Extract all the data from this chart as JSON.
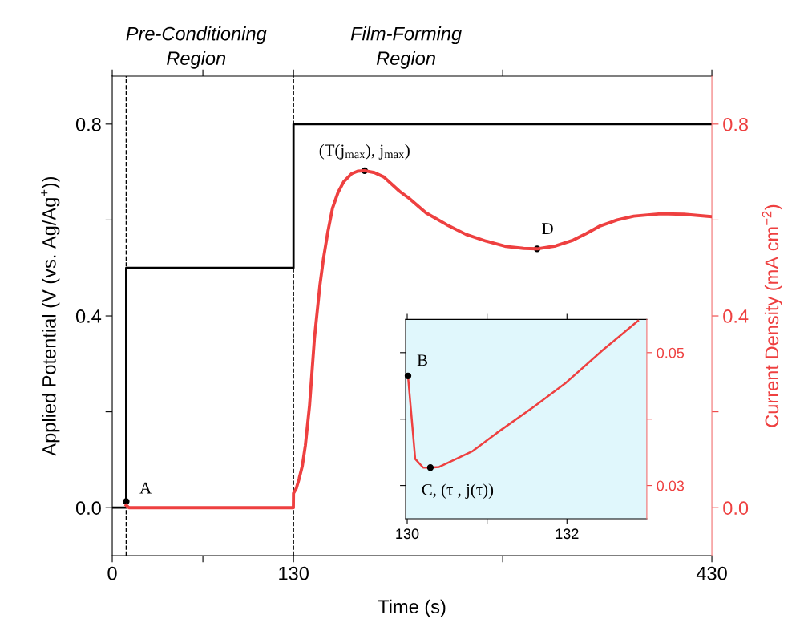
{
  "chart_data": [
    {
      "type": "line",
      "xlabel": "Time (s)",
      "ylabel": "Applied Potential (V (vs. Ag/Ag$^{+}$))",
      "y2label": "Current Density (mA cm$^{−2}$)",
      "xlim": [
        0,
        430
      ],
      "xticks": [
        0,
        {
          "value": 65,
          "label": null
        },
        130,
        {
          "value": 280,
          "label": null
        },
        430
      ],
      "ylim": [
        -0.1,
        0.9
      ],
      "yticks": [
        {
          "value": 0.0,
          "label": "0.0"
        },
        {
          "value": 0.2,
          "label": null
        },
        {
          "value": 0.4,
          "label": "0.4"
        },
        {
          "value": 0.6,
          "label": null
        },
        {
          "value": 0.8,
          "label": "0.8"
        }
      ],
      "y2lim": [
        -0.1,
        0.9
      ],
      "y2ticks": [
        {
          "value": 0.0,
          "label": "0.0"
        },
        {
          "value": 0.2,
          "label": null
        },
        {
          "value": 0.4,
          "label": "0.4"
        },
        {
          "value": 0.6,
          "label": null
        },
        {
          "value": 0.8,
          "label": "0.8"
        }
      ],
      "series": [
        {
          "color": "#000000",
          "x": [
            0,
            10,
            10,
            130,
            130,
            430
          ],
          "values": [
            0,
            0,
            0.5,
            0.5,
            0.8,
            0.8
          ]
        },
        {
          "color": "#ee4040",
          "axis": "y2",
          "x": [
            10,
            12,
            60,
            129.9,
            130,
            132,
            134,
            136.3,
            138.5,
            141.5,
            145,
            148.9,
            151.5,
            154.6,
            158,
            162,
            166,
            171.8,
            176,
            181,
            188,
            194.7,
            206,
            213,
            225,
            240,
            253.7,
            268,
            282.4,
            295,
            304.7,
            318,
            330.5,
            340,
            349.4,
            362,
            374,
            393.5,
            410,
            430
          ],
          "values": [
            0.005,
            0,
            0,
            0,
            0.03,
            0.04,
            0.06,
            0.087,
            0.13,
            0.213,
            0.353,
            0.463,
            0.52,
            0.575,
            0.625,
            0.658,
            0.68,
            0.697,
            0.702,
            0.703,
            0.699,
            0.69,
            0.66,
            0.645,
            0.615,
            0.59,
            0.57,
            0.556,
            0.545,
            0.541,
            0.54,
            0.546,
            0.558,
            0.572,
            0.587,
            0.6,
            0.608,
            0.613,
            0.612,
            0.607
          ]
        }
      ],
      "ref_lines": [
        {
          "axis": "x",
          "value": 10,
          "color": "#000000",
          "line_style": "dashed"
        },
        {
          "axis": "x",
          "value": 130,
          "color": "#000000",
          "line_style": "dashed"
        }
      ],
      "annotations": [
        "Pre-Conditioning\nRegion",
        "Film-Forming\nRegion",
        {
          "text": "A",
          "x": 10,
          "y": 0.013
        },
        {
          "text": "(T(j$_{max}$), j$_{max}$)",
          "x": 181,
          "y": 0.703
        },
        {
          "text": "D",
          "x": 304.7,
          "y": 0.54
        }
      ],
      "grid": false,
      "legend": false,
      "marker": "none",
      "line_style": "solid"
    },
    {
      "type": "line",
      "xlim": [
        129.98,
        133
      ],
      "xticks": [
        130,
        {
          "value": 131,
          "label": null
        },
        132
      ],
      "ylim": [
        0.025,
        0.055
      ],
      "yticks": [
        0.03,
        {
          "value": 0.04,
          "label": null
        },
        0.05
      ],
      "series": [
        {
          "color": "#ee4040",
          "x": [
            130.01,
            130.1,
            130.2,
            130.29,
            130.4,
            130.82,
            131.12,
            131.59,
            131.99,
            132.45,
            132.89
          ],
          "values": [
            0.0465,
            0.034,
            0.0327,
            0.0327,
            0.0328,
            0.0352,
            0.0379,
            0.0419,
            0.0455,
            0.0504,
            0.0548
          ]
        }
      ],
      "annotations": [
        {
          "text": "B",
          "x": 130.01,
          "y": 0.0465
        },
        {
          "text": "C, (τ , j(τ))",
          "x": 130.29,
          "y": 0.0327
        }
      ],
      "grid": false,
      "legend": false,
      "marker": "none",
      "line_style": "solid"
    }
  ]
}
